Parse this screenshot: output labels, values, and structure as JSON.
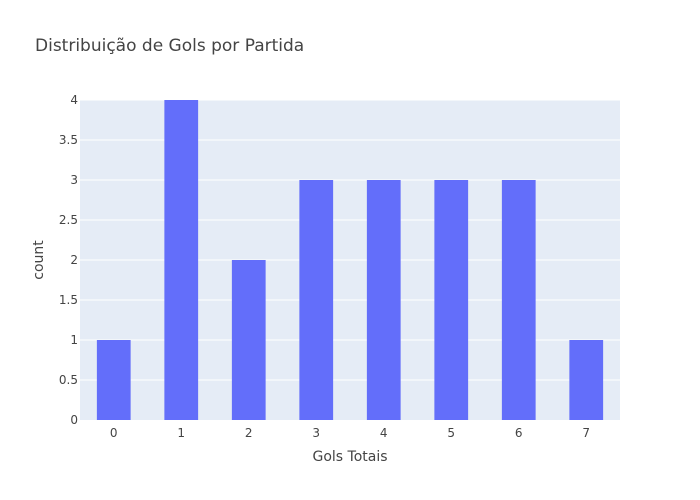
{
  "chart_data": {
    "type": "bar",
    "title": "Distribuição de Gols por Partida",
    "xlabel": "Gols Totais",
    "ylabel": "count",
    "categories": [
      "0",
      "1",
      "2",
      "3",
      "4",
      "5",
      "6",
      "7"
    ],
    "values": [
      1,
      4,
      2,
      3,
      3,
      3,
      3,
      1
    ],
    "ylim": [
      0,
      4
    ],
    "yticks": [
      "0",
      "0.5",
      "1",
      "1.5",
      "2",
      "2.5",
      "3",
      "3.5",
      "4"
    ],
    "grid": true,
    "colors": {
      "bar": "#636efa",
      "plot_background": "#e5ecf6",
      "grid": "#ffffff",
      "text": "#444444"
    }
  }
}
